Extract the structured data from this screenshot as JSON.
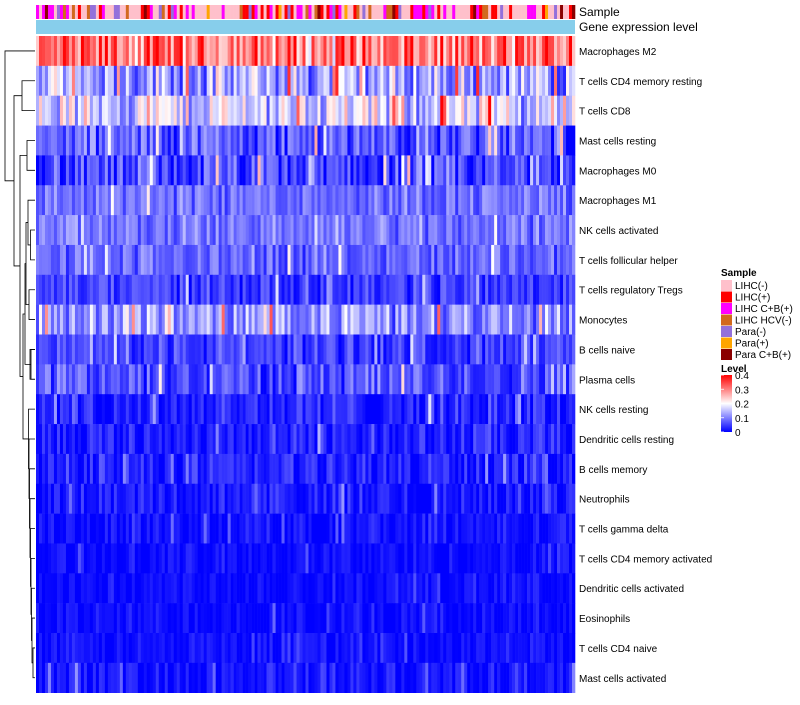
{
  "chart_data": {
    "type": "heatmap",
    "title": "",
    "annotation_tracks": [
      "Sample",
      "Gene expression level"
    ],
    "rows": [
      {
        "label": "Macrophages M2",
        "mean": 0.3,
        "spread": 0.09
      },
      {
        "label": "T cells CD4 memory resting",
        "mean": 0.13,
        "spread": 0.08
      },
      {
        "label": "T cells CD8",
        "mean": 0.17,
        "spread": 0.08
      },
      {
        "label": "Mast cells resting",
        "mean": 0.07,
        "spread": 0.06
      },
      {
        "label": "Macrophages M0",
        "mean": 0.05,
        "spread": 0.06
      },
      {
        "label": "Macrophages M1",
        "mean": 0.09,
        "spread": 0.04
      },
      {
        "label": "NK cells activated",
        "mean": 0.09,
        "spread": 0.04
      },
      {
        "label": "T cells follicular helper",
        "mean": 0.08,
        "spread": 0.04
      },
      {
        "label": "T cells regulatory  Tregs",
        "mean": 0.05,
        "spread": 0.04
      },
      {
        "label": "Monocytes",
        "mean": 0.12,
        "spread": 0.06
      },
      {
        "label": "B cells naive",
        "mean": 0.05,
        "spread": 0.04
      },
      {
        "label": "Plasma cells",
        "mean": 0.06,
        "spread": 0.05
      },
      {
        "label": "NK cells resting",
        "mean": 0.03,
        "spread": 0.04
      },
      {
        "label": "Dendritic cells resting",
        "mean": 0.025,
        "spread": 0.035
      },
      {
        "label": "B cells memory",
        "mean": 0.025,
        "spread": 0.035
      },
      {
        "label": "Neutrophils",
        "mean": 0.02,
        "spread": 0.03
      },
      {
        "label": "T cells gamma delta",
        "mean": 0.012,
        "spread": 0.025
      },
      {
        "label": "T cells CD4 memory activated",
        "mean": 0.01,
        "spread": 0.02
      },
      {
        "label": "Dendritic cells activated",
        "mean": 0.01,
        "spread": 0.02
      },
      {
        "label": "Eosinophils",
        "mean": 0.01,
        "spread": 0.02
      },
      {
        "label": "T cells CD4 naive",
        "mean": 0.01,
        "spread": 0.02
      },
      {
        "label": "Mast cells activated",
        "mean": 0.015,
        "spread": 0.03
      }
    ],
    "n_samples": 180,
    "sample_groups": [
      {
        "name": "LIHC(-)",
        "color": "#ffc0cb",
        "weight": 0.45
      },
      {
        "name": "LIHC(+)",
        "color": "#ff0000",
        "weight": 0.18
      },
      {
        "name": "LIHC C+B(+)",
        "color": "#ff00ff",
        "weight": 0.15
      },
      {
        "name": "LIHC HCV(-)",
        "color": "#d2691e",
        "weight": 0.06
      },
      {
        "name": "Para(-)",
        "color": "#9370db",
        "weight": 0.08
      },
      {
        "name": "Para(+)",
        "color": "#ffa500",
        "weight": 0.04
      },
      {
        "name": "Para C+B(+)",
        "color": "#8b0000",
        "weight": 0.04
      }
    ],
    "expression_track_color": "#87ceeb",
    "legend": {
      "sample_title": "Sample",
      "level_title": "Level",
      "level_ticks": [
        "0.4",
        "0.3",
        "0.2",
        "0.1",
        "0"
      ],
      "level_range": [
        0,
        0.4
      ]
    },
    "colorscale": [
      "#0000ff",
      "#ffffff",
      "#ff0000"
    ]
  }
}
